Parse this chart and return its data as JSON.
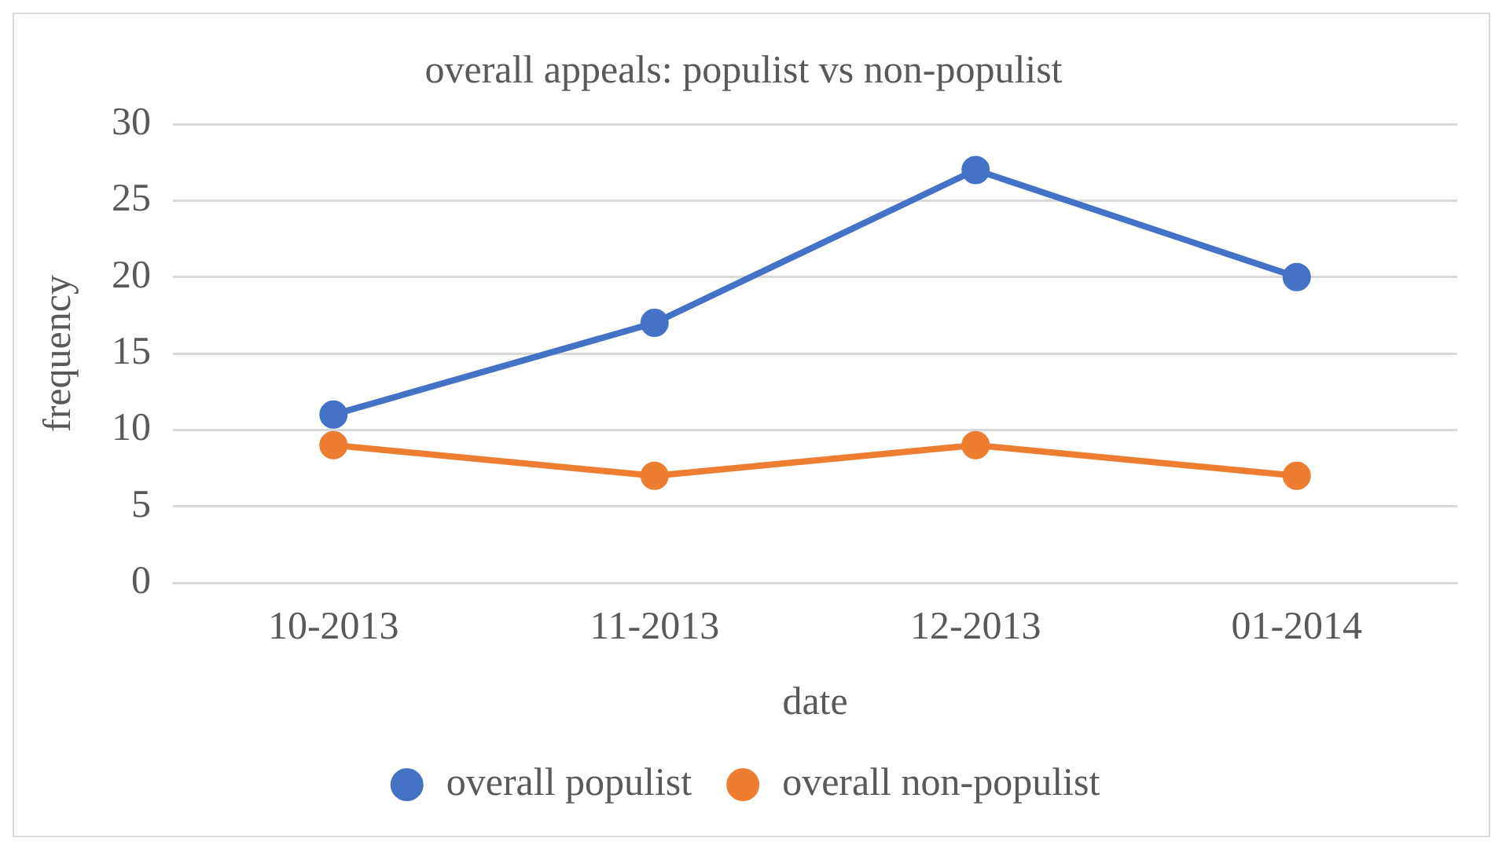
{
  "chart_data": {
    "type": "line",
    "title": "overall appeals: populist vs non-populist",
    "xlabel": "date",
    "ylabel": "frequency",
    "categories": [
      "10-2013",
      "11-2013",
      "12-2013",
      "01-2014"
    ],
    "series": [
      {
        "name": "overall populist",
        "color": "#4472c4",
        "values": [
          11,
          17,
          27,
          20
        ]
      },
      {
        "name": "overall non-populist",
        "color": "#ed7d31",
        "values": [
          9,
          7,
          9,
          7
        ]
      }
    ],
    "ylim": [
      0,
      30
    ],
    "yticks": [
      0,
      5,
      10,
      15,
      20,
      25,
      30
    ],
    "grid": "y",
    "legend": "bottom",
    "marker": "circle",
    "line_style": "solid"
  }
}
